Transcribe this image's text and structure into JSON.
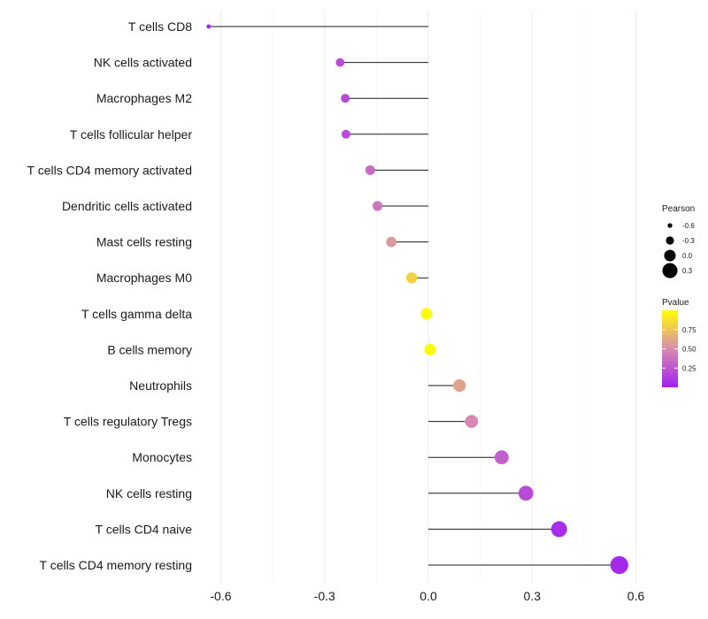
{
  "chart_data": {
    "type": "lollipop",
    "title": "",
    "xlabel": "",
    "ylabel": "",
    "xlim": [
      -0.66,
      0.66
    ],
    "xticks": [
      -0.6,
      -0.3,
      0.0,
      0.3,
      0.6
    ],
    "xtick_labels": [
      "-0.6",
      "-0.3",
      "0.0",
      "0.3",
      "0.6"
    ],
    "grid": true,
    "categories": [
      "T cells CD8",
      "NK cells activated",
      "Macrophages M2",
      "T cells follicular helper",
      "T cells CD4 memory activated",
      "Dendritic cells activated",
      "Mast cells resting",
      "Macrophages M0",
      "T cells gamma delta",
      "B cells memory",
      "Neutrophils",
      "T cells regulatory  Tregs",
      "Monocytes",
      "NK cells resting",
      "T cells CD4 naive",
      "T cells CD4 memory resting"
    ],
    "pearson": [
      -0.635,
      -0.255,
      -0.24,
      -0.238,
      -0.168,
      -0.147,
      -0.107,
      -0.048,
      -0.005,
      0.005,
      0.09,
      0.125,
      0.212,
      0.282,
      0.378,
      0.552
    ],
    "pvalue": [
      0.03,
      0.2,
      0.2,
      0.2,
      0.35,
      0.4,
      0.55,
      0.8,
      0.98,
      0.98,
      0.6,
      0.48,
      0.3,
      0.2,
      0.06,
      0.04
    ],
    "legend": {
      "position": "right",
      "size_title": "Pearson",
      "size_breaks": [
        -0.6,
        -0.3,
        0.0,
        0.3
      ],
      "size_labels": [
        "-0.6",
        "-0.3",
        "0.0",
        "0.3"
      ],
      "color_title": "Pvalue",
      "color_breaks": [
        0.25,
        0.5,
        0.75
      ],
      "color_labels": [
        "0.25",
        "0.50",
        "0.75"
      ],
      "color_low": "#a020f0",
      "color_high": "#ffff00"
    }
  }
}
